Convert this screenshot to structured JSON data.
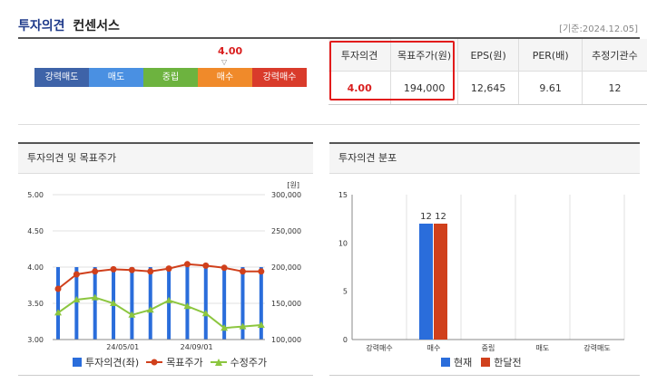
{
  "header": {
    "title": "투자의견",
    "subtitle": "컨센서스",
    "date": "[기준:2024.12.05]"
  },
  "opinion_scale": {
    "current_value": "4.00",
    "current_fraction": 0.75,
    "segments": [
      {
        "label": "강력매도",
        "color": "#3e63a8"
      },
      {
        "label": "매도",
        "color": "#4a90e2"
      },
      {
        "label": "중립",
        "color": "#6db33f"
      },
      {
        "label": "매수",
        "color": "#f08a2a"
      },
      {
        "label": "강력매수",
        "color": "#d93b2b"
      }
    ]
  },
  "consensus": {
    "headers": [
      "투자의견",
      "목표주가(원)",
      "EPS(원)",
      "PER(배)",
      "추정기관수"
    ],
    "values": [
      "4.00",
      "194,000",
      "12,645",
      "9.61",
      "12"
    ]
  },
  "panels": {
    "left_title": "투자의견 및 목표주가",
    "right_title": "투자의견 분포"
  },
  "chart_data": [
    {
      "type": "bar+line",
      "title": "투자의견 및 목표주가",
      "y_left_ticks": [
        "5.00",
        "4.50",
        "4.00",
        "3.50",
        "3.00"
      ],
      "y_left_range": [
        3.0,
        5.0
      ],
      "y_right_ticks": [
        "300,000",
        "250,000",
        "200,000",
        "150,000",
        "100,000"
      ],
      "y_right_range": [
        100000,
        300000
      ],
      "y_right_unit": "[원]",
      "x_tick_labels": [
        "24/05/01",
        "24/09/01"
      ],
      "opinion_values": [
        4.0,
        4.0,
        4.0,
        4.0,
        4.0,
        4.0,
        4.0,
        4.0,
        4.0,
        4.0,
        4.0,
        4.0
      ],
      "series": [
        {
          "name": "투자의견(좌)",
          "color": "#2a6ddb"
        },
        {
          "name": "목표주가",
          "color": "#d0401c",
          "values": [
            170000,
            190000,
            194000,
            197000,
            196000,
            194000,
            198000,
            204000,
            202000,
            199000,
            194000,
            194000
          ]
        },
        {
          "name": "수정주가",
          "color": "#8cc63f",
          "values": [
            137000,
            155000,
            158000,
            150000,
            134000,
            141000,
            154000,
            146000,
            136000,
            116000,
            118000,
            120000
          ]
        }
      ],
      "grid": true,
      "legend": "bottom"
    },
    {
      "type": "bar",
      "title": "투자의견 분포",
      "categories": [
        "강력매수",
        "매수",
        "중립",
        "매도",
        "강력매도"
      ],
      "y_ticks": [
        "15",
        "10",
        "5",
        "0"
      ],
      "ylim": [
        0,
        15
      ],
      "series": [
        {
          "name": "현재",
          "color": "#2a6ddb",
          "values": [
            0,
            12,
            0,
            0,
            0
          ]
        },
        {
          "name": "한달전",
          "color": "#d0401c",
          "values": [
            0,
            12,
            0,
            0,
            0
          ]
        }
      ],
      "legend": "bottom"
    }
  ]
}
